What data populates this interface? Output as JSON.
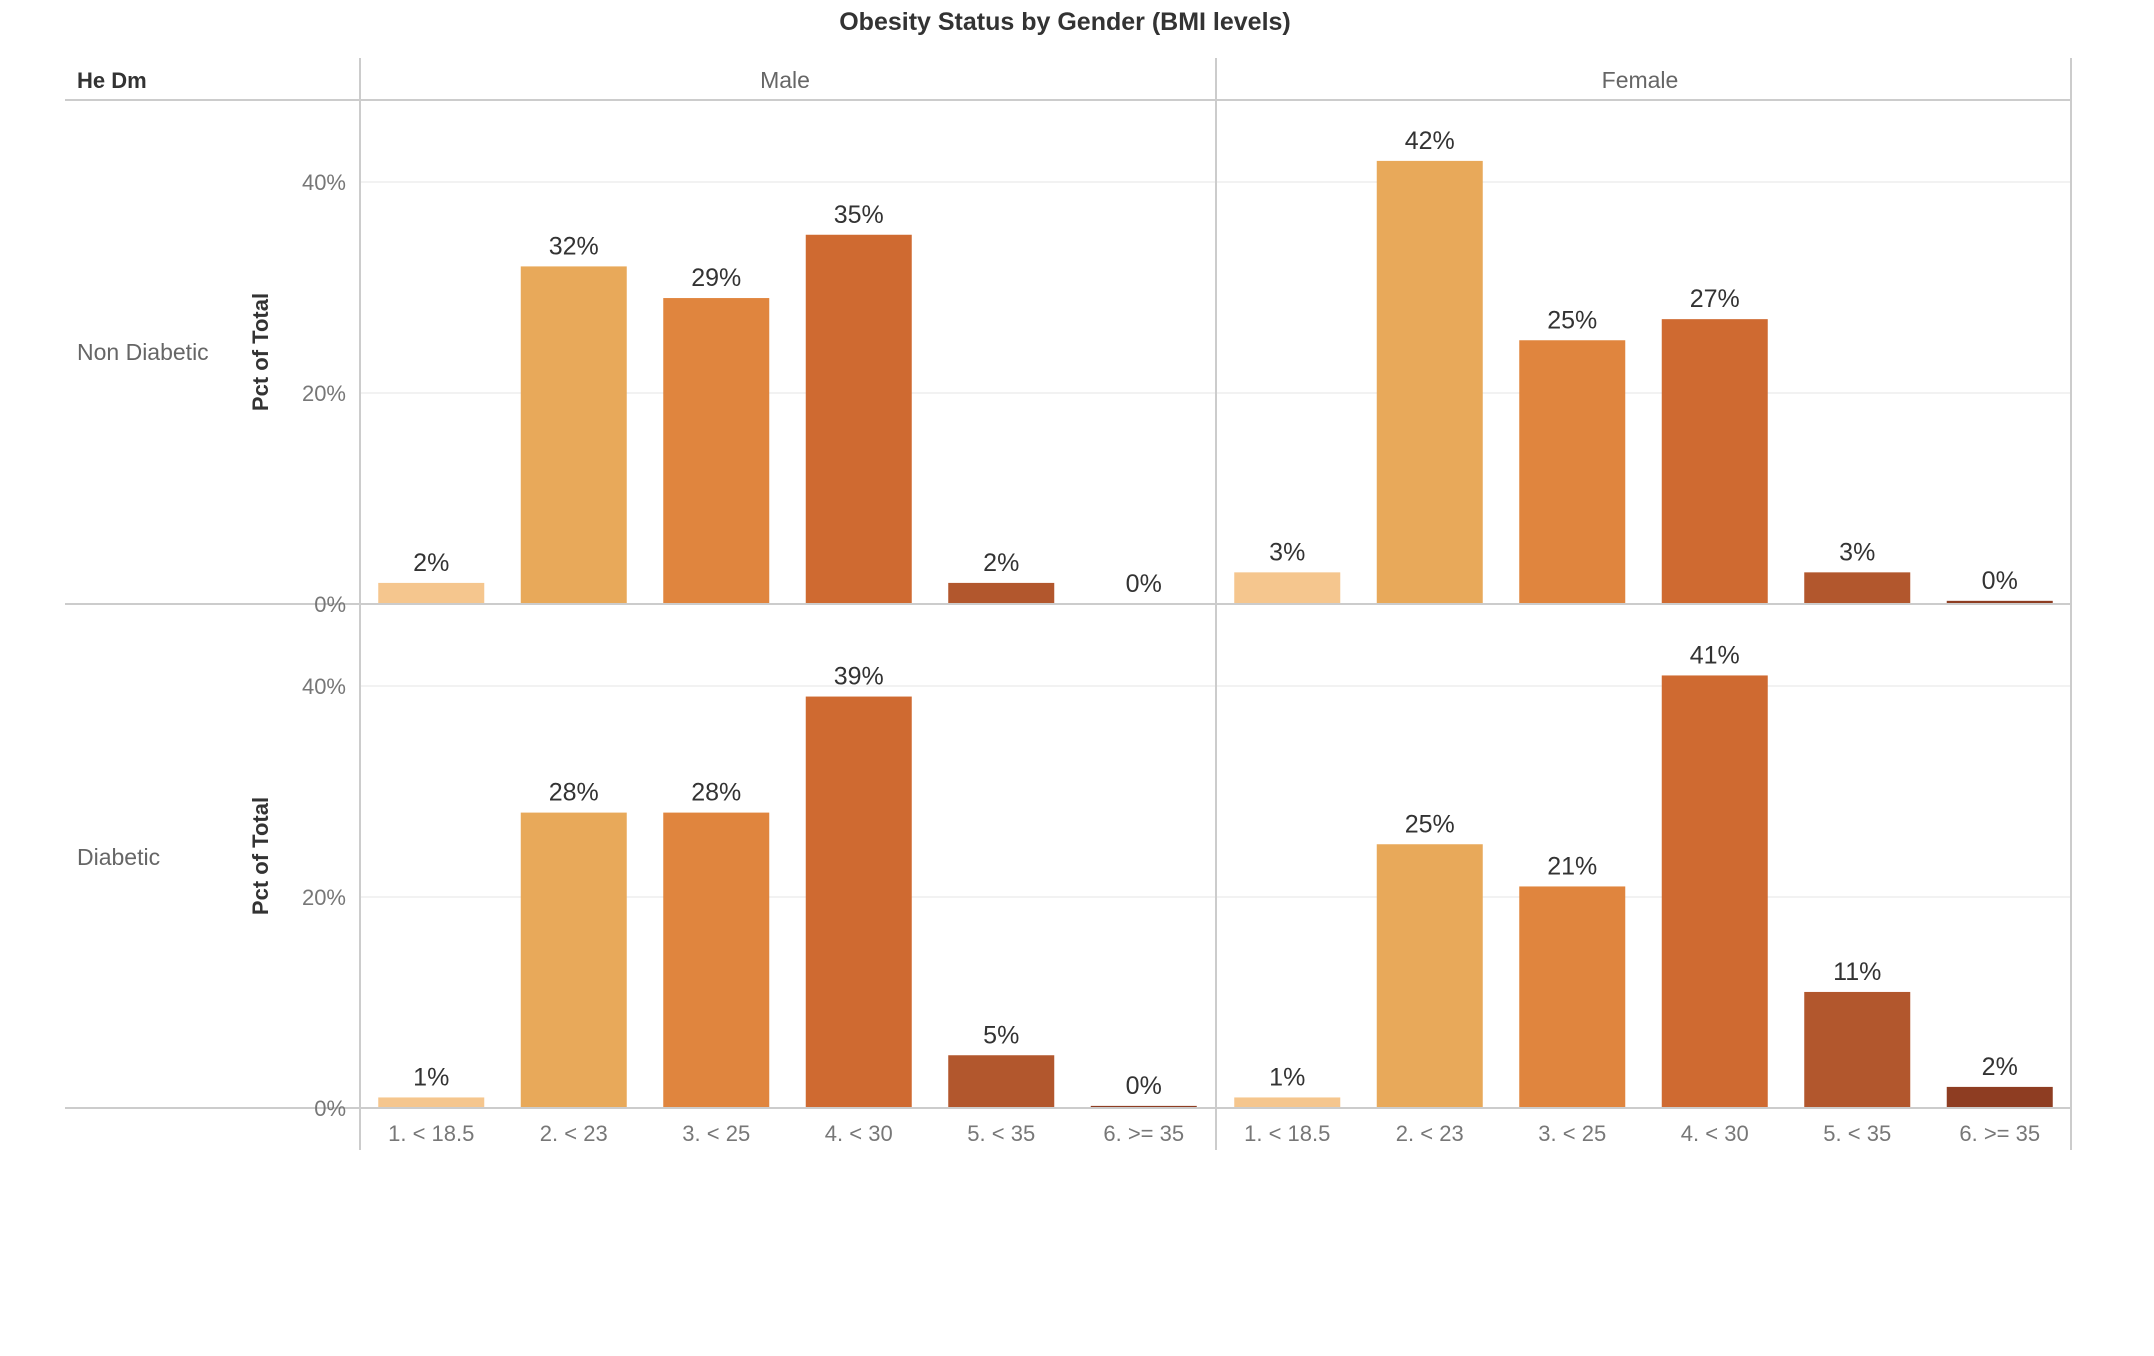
{
  "chart_data": {
    "type": "bar",
    "title": "Obesity Status by Gender (BMI levels)",
    "row_field": "He Dm",
    "columns": [
      "Male",
      "Female"
    ],
    "rows": [
      "Non Diabetic",
      "Diabetic"
    ],
    "ylabel": "Pct of Total",
    "ylim": [
      0,
      45
    ],
    "yticks": [
      0,
      20,
      40
    ],
    "ytick_labels": [
      "0%",
      "20%",
      "40%"
    ],
    "categories": [
      "1. < 18.5",
      "2. < 23",
      "3. < 25",
      "4. < 30",
      "5. < 35",
      "6. >= 35"
    ],
    "colors": [
      "#F5C68E",
      "#E8A95A",
      "#E0853E",
      "#CF6A31",
      "#B2572D",
      "#8E3D22"
    ],
    "grid": true,
    "legend": "none",
    "panels": [
      {
        "row": "Non Diabetic",
        "column": "Male",
        "values": [
          2,
          32,
          29,
          35,
          2,
          0
        ],
        "labels": [
          "2%",
          "32%",
          "29%",
          "35%",
          "2%",
          "0%"
        ]
      },
      {
        "row": "Non Diabetic",
        "column": "Female",
        "values": [
          3,
          42,
          25,
          27,
          3,
          0.3
        ],
        "labels": [
          "3%",
          "42%",
          "25%",
          "27%",
          "3%",
          "0%"
        ]
      },
      {
        "row": "Diabetic",
        "column": "Male",
        "values": [
          1,
          28,
          28,
          39,
          5,
          0.2
        ],
        "labels": [
          "1%",
          "28%",
          "28%",
          "39%",
          "5%",
          "0%"
        ]
      },
      {
        "row": "Diabetic",
        "column": "Female",
        "values": [
          1,
          25,
          21,
          41,
          11,
          2
        ],
        "labels": [
          "1%",
          "25%",
          "21%",
          "41%",
          "11%",
          "2%"
        ]
      }
    ]
  }
}
